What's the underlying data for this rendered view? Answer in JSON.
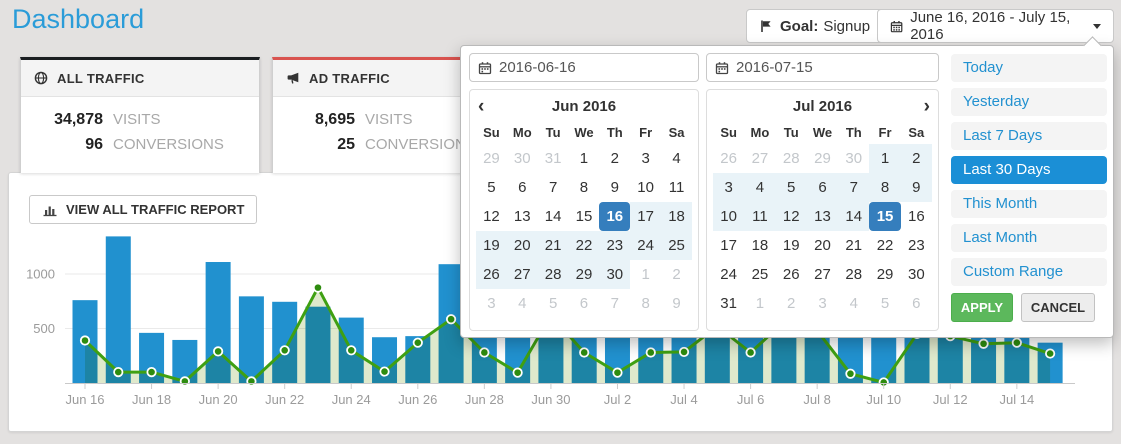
{
  "page": {
    "title": "Dashboard"
  },
  "header": {
    "goal_button": {
      "label": "Goal:",
      "value": "Signup"
    },
    "date_range_button": {
      "label": "June 16, 2016 - July 15, 2016"
    }
  },
  "cards": [
    {
      "title": "ALL TRAFFIC",
      "accent": "#1b1e21",
      "icon": "globe-icon",
      "stats": [
        {
          "value": "34,878",
          "label": "VISITS"
        },
        {
          "value": "96",
          "label": "CONVERSIONS"
        }
      ]
    },
    {
      "title": "AD TRAFFIC",
      "accent": "#d9534f",
      "icon": "megaphone-icon",
      "stats": [
        {
          "value": "8,695",
          "label": "VISITS"
        },
        {
          "value": "25",
          "label": "CONVERSIONS"
        }
      ]
    }
  ],
  "view_report_button": "VIEW ALL TRAFFIC REPORT",
  "icons": {
    "prev_chevron": "‹",
    "next_chevron": "›"
  },
  "colors": {
    "title_blue": "#2b9cd8",
    "bar_blue": "#2191cf",
    "line_green": "#3fa012",
    "selected_day_blue": "#357ebd",
    "range_highlight": "#e9f3f8",
    "preset_active_blue": "#1b8fd6",
    "apply_green": "#5cb85c",
    "card_all_accent": "#1b1e21",
    "card_ad_accent": "#d9534f"
  },
  "chart_data": {
    "type": "bar+line",
    "x": [
      "Jun 16",
      "Jun 17",
      "Jun 18",
      "Jun 19",
      "Jun 20",
      "Jun 21",
      "Jun 22",
      "Jun 23",
      "Jun 24",
      "Jun 25",
      "Jun 26",
      "Jun 27",
      "Jun 28",
      "Jun 29",
      "Jun 30",
      "Jul 1",
      "Jul 2",
      "Jul 3",
      "Jul 4",
      "Jul 5",
      "Jul 6",
      "Jul 7",
      "Jul 8",
      "Jul 9",
      "Jul 10",
      "Jul 11",
      "Jul 12",
      "Jul 13",
      "Jul 14",
      "Jul 15"
    ],
    "x_tick_labels": [
      "Jun 16",
      "Jun 18",
      "Jun 20",
      "Jun 22",
      "Jun 24",
      "Jun 26",
      "Jun 28",
      "Jun 30",
      "Jul 2",
      "Jul 4",
      "Jul 6",
      "Jul 8",
      "Jul 10",
      "Jul 12",
      "Jul 14"
    ],
    "series": [
      {
        "name": "Visits",
        "type": "bar",
        "color": "#2191cf",
        "values": [
          760,
          1345,
          460,
          395,
          1110,
          795,
          745,
          700,
          600,
          420,
          430,
          1090,
          820,
          640,
          980,
          760,
          580,
          690,
          540,
          860,
          620,
          480,
          560,
          900,
          740,
          520,
          610,
          570,
          430,
          370
        ]
      },
      {
        "name": "Conversions",
        "type": "line",
        "color": "#3fa012",
        "marker_color": "#2e8c0f",
        "area_color": "#dfe9cc",
        "values": [
          390,
          100,
          100,
          15,
          290,
          15,
          300,
          875,
          300,
          105,
          370,
          585,
          280,
          95,
          620,
          280,
          95,
          280,
          285,
          520,
          280,
          560,
          480,
          85,
          5,
          450,
          430,
          360,
          370,
          270
        ]
      }
    ],
    "ylim": [
      0,
      1400
    ],
    "yticks": [
      500,
      1000
    ],
    "grid": true,
    "legend": "none"
  },
  "datepicker": {
    "start_input": "2016-06-16",
    "end_input": "2016-07-15",
    "weekdays": [
      "Su",
      "Mo",
      "Tu",
      "We",
      "Th",
      "Fr",
      "Sa"
    ],
    "months": [
      {
        "title": "Jun 2016",
        "nav": "prev",
        "weeks": [
          [
            [
              29,
              1
            ],
            [
              30,
              1
            ],
            [
              31,
              1
            ],
            [
              1,
              0
            ],
            [
              2,
              0
            ],
            [
              3,
              0
            ],
            [
              4,
              0
            ]
          ],
          [
            [
              5,
              0
            ],
            [
              6,
              0
            ],
            [
              7,
              0
            ],
            [
              8,
              0
            ],
            [
              9,
              0
            ],
            [
              10,
              0
            ],
            [
              11,
              0
            ]
          ],
          [
            [
              12,
              0
            ],
            [
              13,
              0
            ],
            [
              14,
              0
            ],
            [
              15,
              0
            ],
            [
              16,
              3
            ],
            [
              17,
              2
            ],
            [
              18,
              2
            ]
          ],
          [
            [
              19,
              2
            ],
            [
              20,
              2
            ],
            [
              21,
              2
            ],
            [
              22,
              2
            ],
            [
              23,
              2
            ],
            [
              24,
              2
            ],
            [
              25,
              2
            ]
          ],
          [
            [
              26,
              2
            ],
            [
              27,
              2
            ],
            [
              28,
              2
            ],
            [
              29,
              2
            ],
            [
              30,
              2
            ],
            [
              1,
              1
            ],
            [
              2,
              1
            ]
          ],
          [
            [
              3,
              1
            ],
            [
              4,
              1
            ],
            [
              5,
              1
            ],
            [
              6,
              1
            ],
            [
              7,
              1
            ],
            [
              8,
              1
            ],
            [
              9,
              1
            ]
          ]
        ]
      },
      {
        "title": "Jul 2016",
        "nav": "next",
        "weeks": [
          [
            [
              26,
              1
            ],
            [
              27,
              1
            ],
            [
              28,
              1
            ],
            [
              29,
              1
            ],
            [
              30,
              1
            ],
            [
              1,
              2
            ],
            [
              2,
              2
            ]
          ],
          [
            [
              3,
              2
            ],
            [
              4,
              2
            ],
            [
              5,
              2
            ],
            [
              6,
              2
            ],
            [
              7,
              2
            ],
            [
              8,
              2
            ],
            [
              9,
              2
            ]
          ],
          [
            [
              10,
              2
            ],
            [
              11,
              2
            ],
            [
              12,
              2
            ],
            [
              13,
              2
            ],
            [
              14,
              2
            ],
            [
              15,
              3
            ],
            [
              16,
              0
            ]
          ],
          [
            [
              17,
              0
            ],
            [
              18,
              0
            ],
            [
              19,
              0
            ],
            [
              20,
              0
            ],
            [
              21,
              0
            ],
            [
              22,
              0
            ],
            [
              23,
              0
            ]
          ],
          [
            [
              24,
              0
            ],
            [
              25,
              0
            ],
            [
              26,
              0
            ],
            [
              27,
              0
            ],
            [
              28,
              0
            ],
            [
              29,
              0
            ],
            [
              30,
              0
            ]
          ],
          [
            [
              31,
              0
            ],
            [
              1,
              1
            ],
            [
              2,
              1
            ],
            [
              3,
              1
            ],
            [
              4,
              1
            ],
            [
              5,
              1
            ],
            [
              6,
              1
            ]
          ]
        ]
      }
    ],
    "presets": [
      "Today",
      "Yesterday",
      "Last 7 Days",
      "Last 30 Days",
      "This Month",
      "Last Month",
      "Custom Range"
    ],
    "active_preset": "Last 30 Days",
    "apply_label": "APPLY",
    "cancel_label": "CANCEL"
  }
}
